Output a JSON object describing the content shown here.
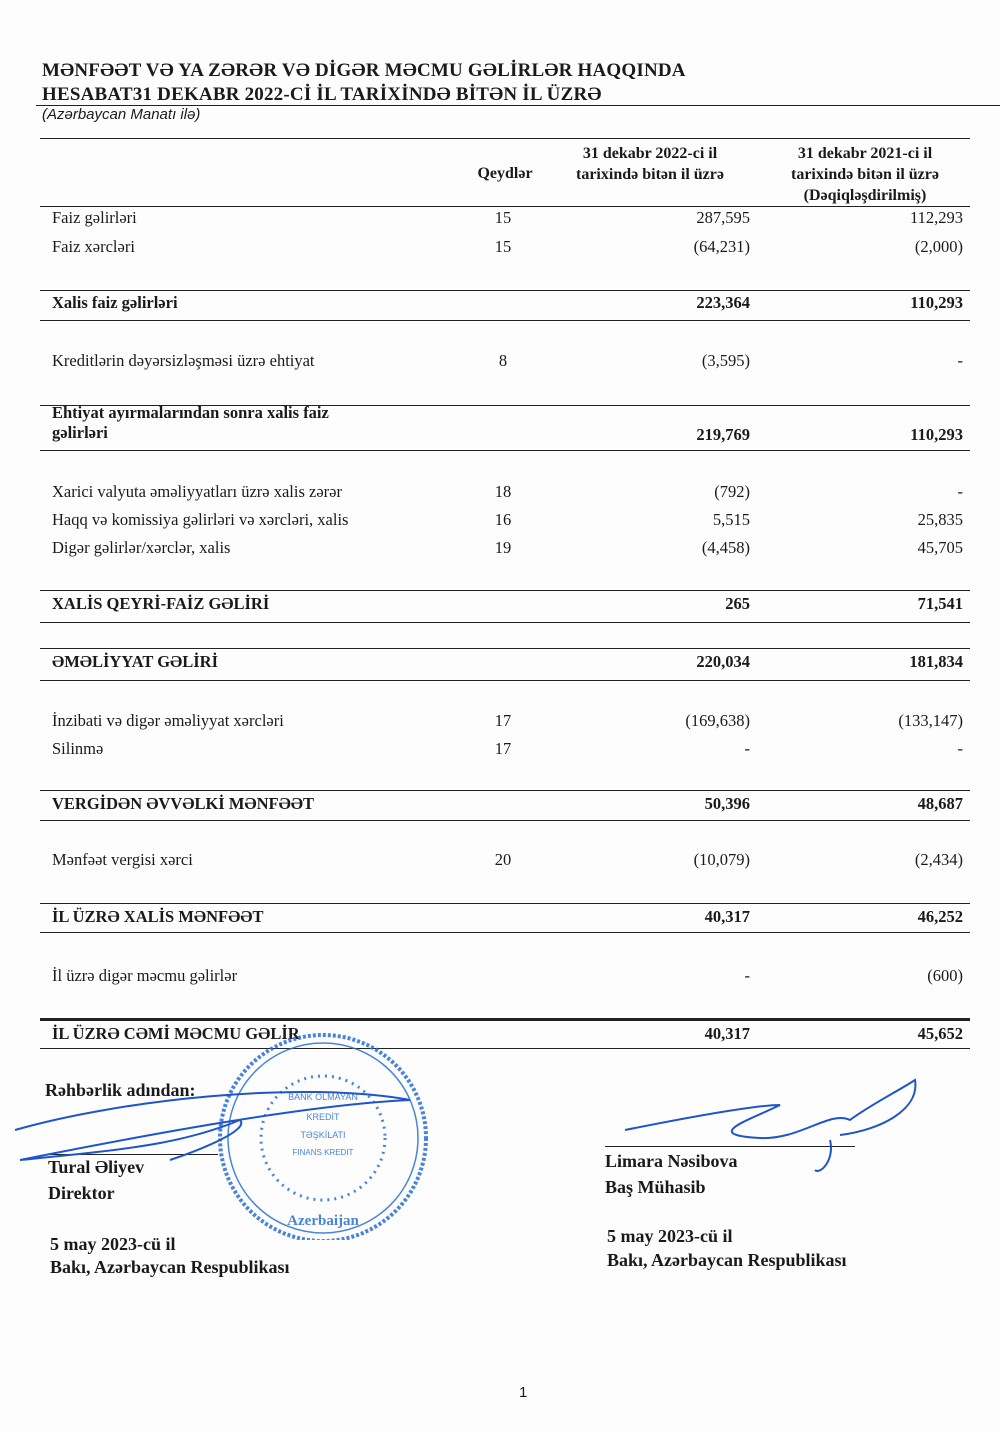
{
  "title_line1": "MƏNFƏƏT VƏ YA ZƏRƏR VƏ DİGƏR MƏCMU GƏLİRLƏR HAQQINDA",
  "title_line2": "HESABAT31 DEKABR 2022-Cİ İL TARİXİNDƏ BİTƏN İL ÜZRƏ",
  "subtitle": "(Azərbaycan Manatı ilə)",
  "headers": {
    "notes": "Qeydlər",
    "col1_l1": "31 dekabr 2022-ci il",
    "col1_l2": "tarixində bitən il üzrə",
    "col2_l1": "31 dekabr 2021-ci il",
    "col2_l2": "tarixində bitən il üzrə",
    "col2_l3": "(Dəqiqləşdirilmiş)"
  },
  "rows": [
    {
      "label": "Faiz gəlirləri",
      "note": "15",
      "y2022": "287,595",
      "y2021": "112,293"
    },
    {
      "label": "Faiz xərcləri",
      "note": "15",
      "y2022": "(64,231)",
      "y2021": "(2,000)"
    },
    {
      "label": "Xalis faiz gəlirləri",
      "note": "",
      "y2022": "223,364",
      "y2021": "110,293"
    },
    {
      "label": "Kreditlərin dəyərsizləşməsi üzrə ehtiyat",
      "note": "8",
      "y2022": "(3,595)",
      "y2021": "-"
    },
    {
      "label": "Ehtiyat ayırmalarından sonra xalis faiz",
      "label2": "gəlirləri",
      "note": "",
      "y2022": "219,769",
      "y2021": "110,293"
    },
    {
      "label": "Xarici valyuta əməliyyatları üzrə xalis zərər",
      "note": "18",
      "y2022": "(792)",
      "y2021": "-"
    },
    {
      "label": "Haqq və komissiya gəlirləri və xərcləri, xalis",
      "note": "16",
      "y2022": "5,515",
      "y2021": "25,835"
    },
    {
      "label": "Digər gəlirlər/xərclər, xalis",
      "note": "19",
      "y2022": "(4,458)",
      "y2021": "45,705"
    },
    {
      "label": "XALİS QEYRİ-FAİZ GƏLİRİ",
      "note": "",
      "y2022": "265",
      "y2021": "71,541"
    },
    {
      "label": "ƏMƏLİYYAT GƏLİRİ",
      "note": "",
      "y2022": "220,034",
      "y2021": "181,834"
    },
    {
      "label": "İnzibati və digər əməliyyat xərcləri",
      "note": "17",
      "y2022": "(169,638)",
      "y2021": "(133,147)"
    },
    {
      "label": "Silinmə",
      "note": "17",
      "y2022": "-",
      "y2021": "-"
    },
    {
      "label": "VERGİDƏN ƏVVƏLKİ MƏNFƏƏT",
      "note": "",
      "y2022": "50,396",
      "y2021": "48,687"
    },
    {
      "label": "Mənfəət vergisi xərci",
      "note": "20",
      "y2022": "(10,079)",
      "y2021": "(2,434)"
    },
    {
      "label": "İL ÜZRƏ XALİS MƏNFƏƏT",
      "note": "",
      "y2022": "40,317",
      "y2021": "46,252"
    },
    {
      "label": "İl üzrə digər məcmu gəlirlər",
      "note": "",
      "y2022": "-",
      "y2021": "(600)"
    },
    {
      "label": "İL ÜZRƏ CƏMİ MƏCMU GƏLİR",
      "note": "",
      "y2022": "40,317",
      "y2021": "45,652"
    }
  ],
  "signatures": {
    "on_behalf": "Rəhbərlik adından:",
    "left_name": "Tural Əliyev",
    "left_title": "Direktor",
    "left_date": "5 may 2023-cü il",
    "left_place": "Bakı, Azərbaycan Respublikası",
    "right_name": "Limara Nəsibova",
    "right_title": "Baş Mühasib",
    "right_date": "5 may 2023-cü il",
    "right_place": "Bakı, Azərbaycan Respublikası"
  },
  "stamp": {
    "outer": "Azərbaycan Respublikası",
    "inner": "Məhdud Məsuliyyətli Cəmiyyəti",
    "center": [
      "BANK OLMAYAN",
      "KREDİT",
      "TƏŞKİLATI",
      "FINANS KREDIT"
    ],
    "bottom": "Azerbaijan Republic",
    "color": "#2a6fd1"
  },
  "page_number": "1"
}
